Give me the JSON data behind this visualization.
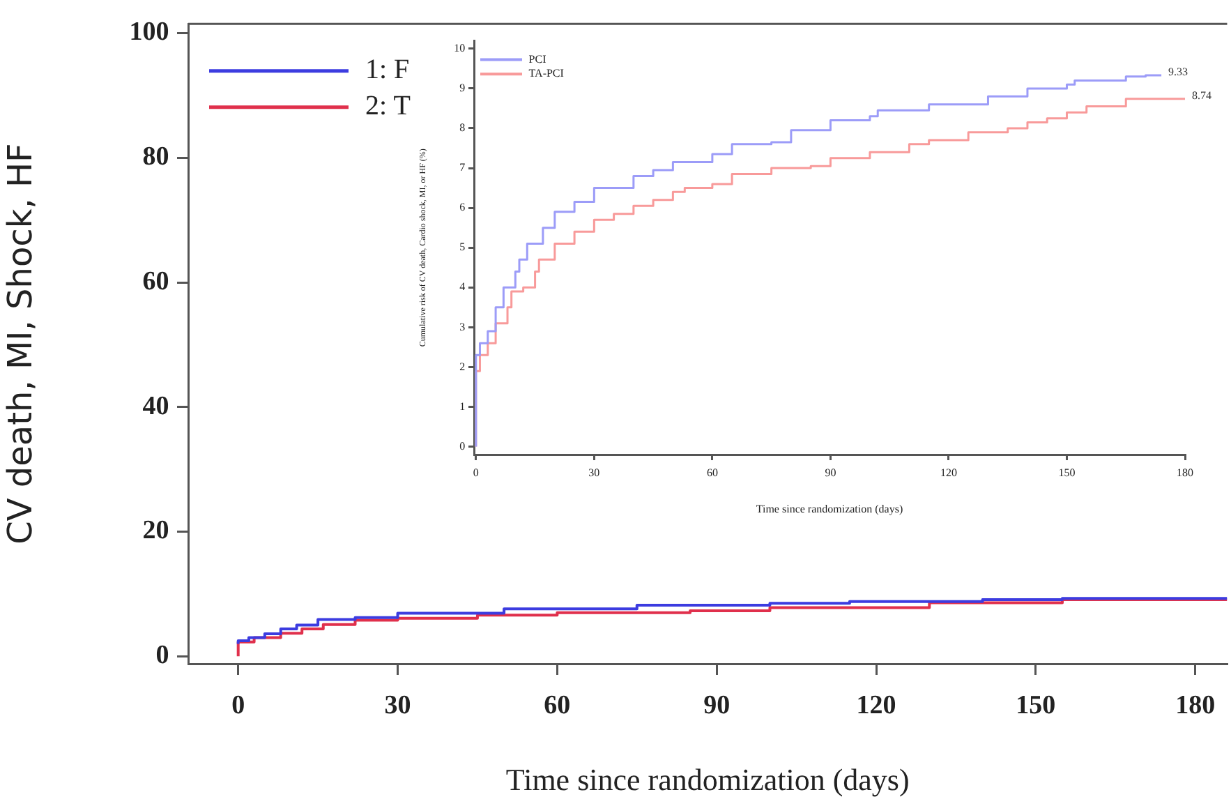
{
  "chart_data": [
    {
      "type": "step",
      "xlabel": "Time since randomization (days)",
      "ylabel": "CV death, MI, Shock, HF",
      "xlim": [
        -9.4,
        186
      ],
      "xticks": [
        0,
        30,
        60,
        90,
        120,
        150,
        180
      ],
      "ylim": [
        -1.2,
        101.5
      ],
      "yticks": [
        0,
        20,
        40,
        60,
        80,
        100
      ],
      "legend": "top left",
      "marker": "none",
      "series": [
        {
          "name": "1: F",
          "color": "#3c3ce0",
          "x": [
            0,
            2,
            5,
            8,
            11,
            15,
            22,
            30,
            50,
            75,
            100,
            115,
            140,
            155,
            186
          ],
          "values": [
            2.0,
            2.5,
            3.0,
            3.6,
            4.4,
            5.0,
            5.9,
            6.2,
            6.9,
            7.6,
            8.2,
            8.5,
            8.8,
            9.1,
            9.3
          ]
        },
        {
          "name": "2: T",
          "color": "#e0304c",
          "x": [
            0,
            0,
            3,
            8,
            12,
            16,
            22,
            30,
            45,
            60,
            85,
            100,
            130,
            155,
            186
          ],
          "values": [
            0,
            1.8,
            2.3,
            3.0,
            3.7,
            4.4,
            5.1,
            5.8,
            6.1,
            6.6,
            7.0,
            7.3,
            7.8,
            8.6,
            9.1
          ]
        }
      ]
    },
    {
      "type": "step",
      "xlabel": "Time since randomization (days)",
      "ylabel": "Cumulative risk of CV death, Cardio shock, MI, or HF (%)",
      "xlim": [
        -0.5,
        180
      ],
      "xticks": [
        0,
        30,
        60,
        90,
        120,
        150,
        180
      ],
      "ylim": [
        -0.2,
        10.2
      ],
      "yticks": [
        0,
        1,
        2,
        3,
        4,
        5,
        6,
        7,
        8,
        9,
        10
      ],
      "legend": "top left",
      "marker": "none",
      "annotations": [
        {
          "text": "9.33",
          "x": 174,
          "y": 9.33
        },
        {
          "text": "8.74",
          "x": 180,
          "y": 8.74
        }
      ],
      "series": [
        {
          "name": "PCI",
          "color": "#9c9cf8",
          "x": [
            0,
            0,
            1,
            3,
            5,
            7,
            10,
            11,
            13,
            17,
            20,
            25,
            30,
            40,
            45,
            50,
            60,
            65,
            75,
            80,
            90,
            100,
            102,
            115,
            130,
            140,
            150,
            152,
            165,
            170,
            174
          ],
          "values": [
            0,
            2.0,
            2.3,
            2.6,
            2.9,
            3.5,
            4.0,
            4.4,
            4.7,
            5.1,
            5.5,
            5.9,
            6.15,
            6.5,
            6.8,
            6.95,
            7.15,
            7.35,
            7.6,
            7.65,
            7.95,
            8.2,
            8.3,
            8.45,
            8.6,
            8.8,
            9.0,
            9.1,
            9.2,
            9.3,
            9.33
          ]
        },
        {
          "name": "TA-PCI",
          "color": "#f89a9a",
          "x": [
            0,
            0,
            1,
            3,
            5,
            8,
            9,
            12,
            15,
            16,
            20,
            25,
            30,
            35,
            40,
            45,
            50,
            53,
            60,
            65,
            75,
            85,
            90,
            100,
            110,
            115,
            125,
            135,
            140,
            145,
            150,
            155,
            165,
            180
          ],
          "values": [
            0,
            1.8,
            1.9,
            2.3,
            2.6,
            3.1,
            3.5,
            3.9,
            4.0,
            4.4,
            4.7,
            5.1,
            5.4,
            5.7,
            5.85,
            6.05,
            6.2,
            6.4,
            6.5,
            6.6,
            6.85,
            7.0,
            7.05,
            7.25,
            7.4,
            7.6,
            7.7,
            7.9,
            8.0,
            8.15,
            8.25,
            8.4,
            8.55,
            8.74
          ]
        }
      ]
    }
  ]
}
